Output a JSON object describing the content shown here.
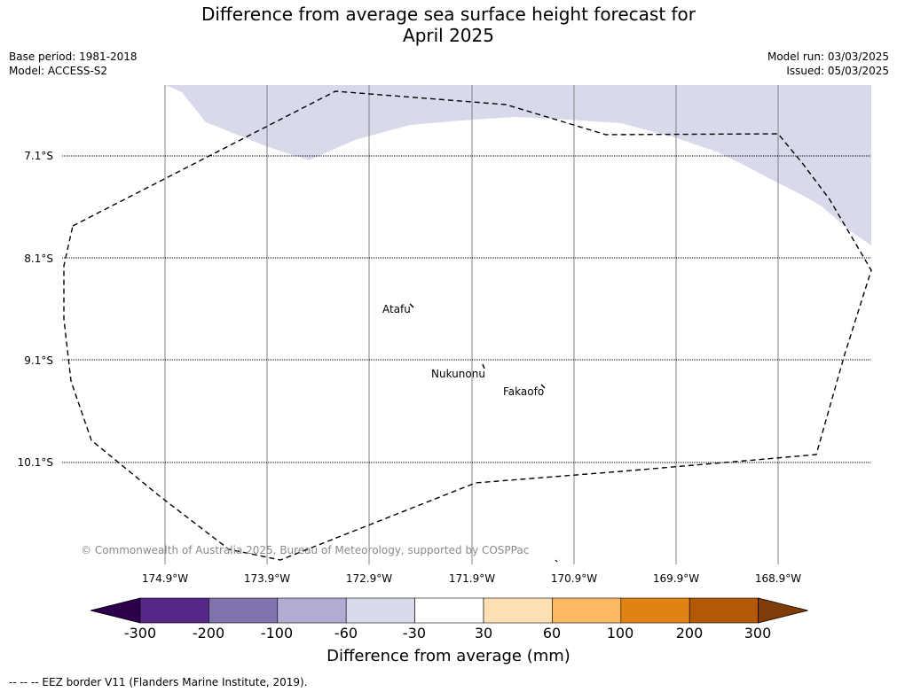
{
  "title": {
    "line1": "Difference from average sea surface height forecast for",
    "line2": "April 2025"
  },
  "meta_left": {
    "base_period": "Base period: 1981-2018",
    "model": "Model: ACCESS-S2"
  },
  "meta_right": {
    "model_run": "Model run: 03/03/2025",
    "issued": "Issued: 05/03/2025"
  },
  "latitude_labels": [
    "7.1°S",
    "8.1°S",
    "9.1°S",
    "10.1°S"
  ],
  "longitude_labels": [
    "174.9°W",
    "173.9°W",
    "172.9°W",
    "171.9°W",
    "170.9°W",
    "169.9°W",
    "168.9°W"
  ],
  "places": {
    "atafu": "Atafu",
    "nukunonu": "Nukunonu",
    "fakaofo": "Fakaofo"
  },
  "copyright": "© Commonwealth of Australia 2025, Bureau of Meteorology, supported by COSPPac",
  "colorbar": {
    "title": "Difference from average (mm)",
    "ticks": [
      "-300",
      "-200",
      "-100",
      "-60",
      "-30",
      "30",
      "60",
      "100",
      "200",
      "300"
    ],
    "colors": [
      "#2d004b",
      "#542788",
      "#8073ac",
      "#b2abd2",
      "#d8daeb",
      "#ffffff",
      "#fee0b6",
      "#fdb863",
      "#e08214",
      "#b35806",
      "#7f3b08"
    ]
  },
  "footnote": "--  --  -- EEZ border V11 (Flanders Marine Institute, 2019).",
  "fill_color": "#d8daeb"
}
